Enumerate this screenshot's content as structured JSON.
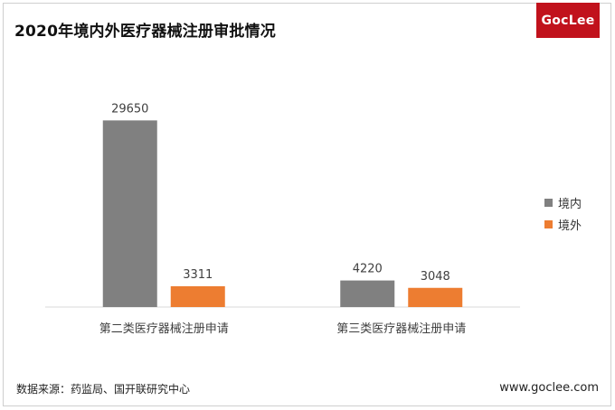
{
  "title": "2020年境内外医疗器械注册审批情况",
  "logo": {
    "text": "GocLee"
  },
  "footer": {
    "source": "数据来源：药监局、国开联研究中心",
    "website": "www.goclee.com"
  },
  "colors": {
    "domestic": "#808080",
    "foreign": "#ed7d31",
    "logo_bg": "#c1121c"
  },
  "chart_data": {
    "type": "bar",
    "title": "2020年境内外医疗器械注册审批情况",
    "categories": [
      "第二类医疗器械注册申请",
      "第三类医疗器械注册申请"
    ],
    "series": [
      {
        "name": "境内",
        "values": [
          29650,
          4220
        ],
        "color": "#808080"
      },
      {
        "name": "境外",
        "values": [
          3311,
          3048
        ],
        "color": "#ed7d31"
      }
    ],
    "xlabel": "",
    "ylabel": "",
    "ylim": [
      0,
      33000
    ],
    "grid": false,
    "legend": "right",
    "data_labels": true
  }
}
